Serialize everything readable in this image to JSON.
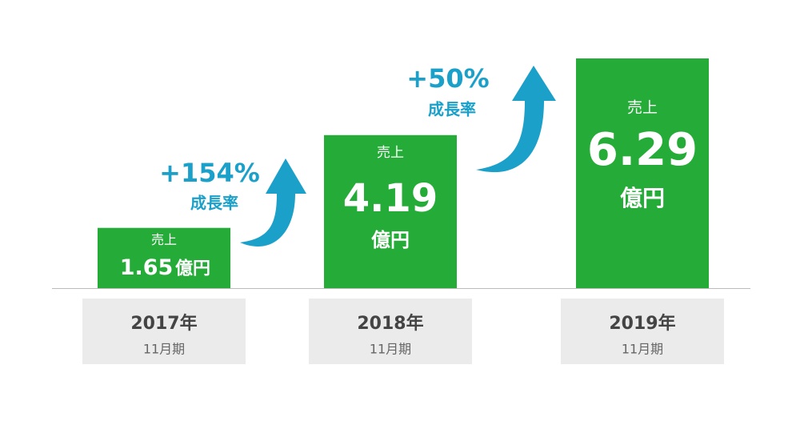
{
  "chart_data": {
    "type": "bar",
    "categories": [
      "2017年",
      "2018年",
      "2019年"
    ],
    "period_labels": [
      "11月期",
      "11月期",
      "11月期"
    ],
    "values": [
      1.65,
      4.19,
      6.29
    ],
    "value_prefix": "売上",
    "value_unit": "億円",
    "color": "#25ab38",
    "annotations": [
      {
        "text": "+154%",
        "label": "成長率"
      },
      {
        "text": "+50%",
        "label": "成長率"
      }
    ],
    "annotation_color": "#1ba0c9"
  }
}
